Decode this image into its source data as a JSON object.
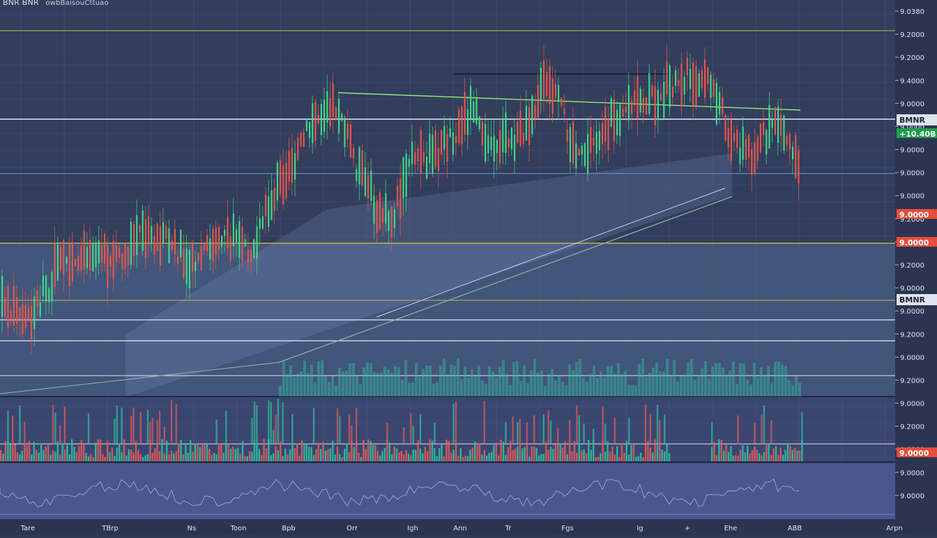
{
  "header": {
    "symbol": "BNR BNR",
    "subtitle": "owbBaisouCttuao"
  },
  "chart_data": {
    "type": "candlestick",
    "xlim": [
      0,
      1150
    ],
    "ylim": [
      0,
      1
    ],
    "price_labels": [
      "9.0380",
      "9.2000",
      "9.2000",
      "9.4000",
      "9.0000",
      "9.0000",
      "9.0000",
      "9.0000",
      "9.0000",
      "9.2000",
      "9.2000",
      "9.2000",
      "9.0000",
      "9.0000",
      "9.2000",
      "9.0000",
      "9.2000",
      "9.0000",
      "9.2000",
      "9.0000",
      "9.0000",
      "9.0000",
      "9.0000"
    ],
    "price_badges": [
      {
        "label": "BMNR",
        "kind": "symbol"
      },
      {
        "label": "+10.40B",
        "kind": "up"
      },
      {
        "label": "9.0000",
        "kind": "down"
      },
      {
        "label": "9.0000",
        "kind": "down"
      },
      {
        "label": "BMNR",
        "kind": "symbol"
      },
      {
        "label": "9.0000",
        "kind": "down"
      }
    ],
    "x_labels": [
      "Tare",
      "TBrp",
      "Ns",
      "Toon",
      "Bpb",
      "Orr",
      "Igh",
      "Ann",
      "Tr",
      "Fgs",
      "Ig",
      "+",
      "Ehe",
      "ABB",
      "Arpn"
    ],
    "colors": {
      "up": "#3fe08a",
      "down": "#f0584b",
      "volume_up": "#2fbfa0",
      "volume_down": "#e05a5a",
      "trend": "#8ef07a",
      "level": "#c8b24a"
    },
    "price_series": [
      {
        "x": 0,
        "close": 0.72,
        "type": "down"
      },
      {
        "x": 40,
        "close": 0.76,
        "type": "down"
      },
      {
        "x": 80,
        "close": 0.64,
        "type": "up"
      },
      {
        "x": 120,
        "close": 0.58,
        "type": "down"
      },
      {
        "x": 160,
        "close": 0.61,
        "type": "up"
      },
      {
        "x": 200,
        "close": 0.55,
        "type": "up"
      },
      {
        "x": 240,
        "close": 0.57,
        "type": "down"
      },
      {
        "x": 280,
        "close": 0.62,
        "type": "down"
      },
      {
        "x": 320,
        "close": 0.55,
        "type": "up"
      },
      {
        "x": 360,
        "close": 0.58,
        "type": "down"
      },
      {
        "x": 400,
        "close": 0.42,
        "type": "up"
      },
      {
        "x": 440,
        "close": 0.3,
        "type": "up"
      },
      {
        "x": 470,
        "close": 0.22,
        "type": "up"
      },
      {
        "x": 490,
        "close": 0.25,
        "type": "down"
      },
      {
        "x": 510,
        "close": 0.38,
        "type": "down"
      },
      {
        "x": 540,
        "close": 0.48,
        "type": "down"
      },
      {
        "x": 560,
        "close": 0.52,
        "type": "up"
      },
      {
        "x": 590,
        "close": 0.36,
        "type": "up"
      },
      {
        "x": 620,
        "close": 0.36,
        "type": "down"
      },
      {
        "x": 660,
        "close": 0.28,
        "type": "up"
      },
      {
        "x": 680,
        "close": 0.22,
        "type": "up"
      },
      {
        "x": 700,
        "close": 0.32,
        "type": "down"
      },
      {
        "x": 740,
        "close": 0.32,
        "type": "up"
      },
      {
        "x": 780,
        "close": 0.18,
        "type": "up"
      },
      {
        "x": 800,
        "close": 0.22,
        "type": "down"
      },
      {
        "x": 830,
        "close": 0.37,
        "type": "down"
      },
      {
        "x": 860,
        "close": 0.3,
        "type": "up"
      },
      {
        "x": 890,
        "close": 0.24,
        "type": "up"
      },
      {
        "x": 930,
        "close": 0.22,
        "type": "up"
      },
      {
        "x": 960,
        "close": 0.18,
        "type": "up"
      },
      {
        "x": 990,
        "close": 0.15,
        "type": "down"
      },
      {
        "x": 1020,
        "close": 0.18,
        "type": "down"
      },
      {
        "x": 1050,
        "close": 0.32,
        "type": "down"
      },
      {
        "x": 1080,
        "close": 0.35,
        "type": "up"
      },
      {
        "x": 1110,
        "close": 0.26,
        "type": "up"
      },
      {
        "x": 1145,
        "close": 0.36,
        "type": "down"
      }
    ]
  }
}
